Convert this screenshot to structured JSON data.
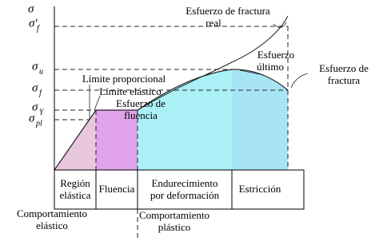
{
  "axes": {
    "y_label": "σ"
  },
  "stress_levels": {
    "fracture_real": {
      "symbol": "σ'",
      "sub": "f"
    },
    "ultimate": {
      "symbol": "σ",
      "sub": "u"
    },
    "fracture": {
      "symbol": "σ",
      "sub": "f"
    },
    "yield": {
      "symbol": "σ",
      "sub": "Y"
    },
    "proportional": {
      "symbol": "σ",
      "sub": "pl"
    }
  },
  "annotations": {
    "real_fracture": [
      "Esfuerzo de fractura",
      "real"
    ],
    "ultimate": [
      "Esfuerzo",
      "último"
    ],
    "fracture": [
      "Esfuerzo de",
      "fractura"
    ],
    "proportional_limit": "Límite proporcional",
    "elastic_limit": "Límite elástico",
    "yield": [
      "Esfuerzo de",
      "fluencia"
    ]
  },
  "regions": {
    "elastic": [
      "Región",
      "elástica"
    ],
    "yielding": "Fluencia",
    "hardening": [
      "Endurecimiento",
      "por deformación"
    ],
    "necking": "Estricción"
  },
  "behaviors": {
    "elastic": [
      "Comportamiento",
      "elástico"
    ],
    "plastic": [
      "Comportamiento",
      "plástico"
    ]
  }
}
